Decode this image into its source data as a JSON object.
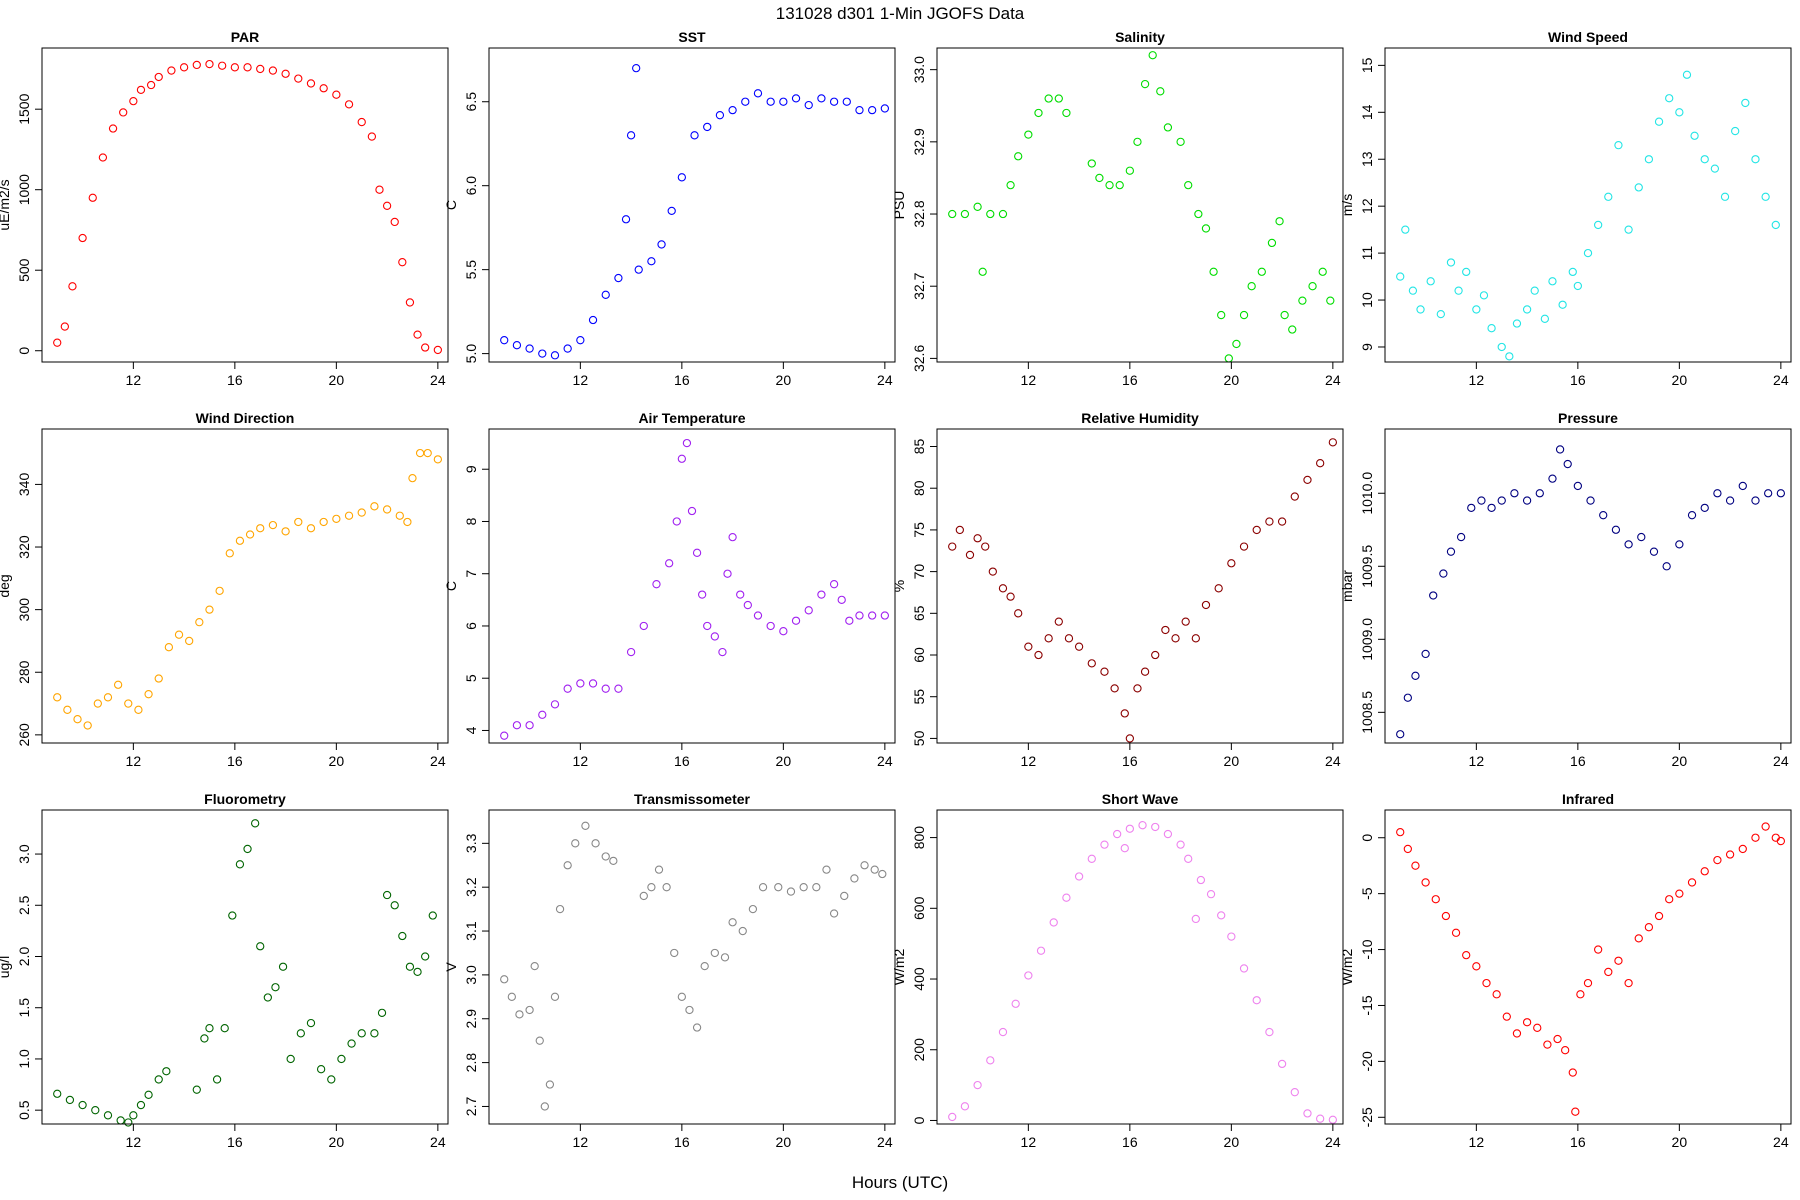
{
  "title": "131028   d301   1-Min  JGOFS Data",
  "xlabel": "Hours (UTC)",
  "chart_data": [
    {
      "type": "scatter",
      "title": "PAR",
      "ylabel": "uE/m2/s",
      "color": "#ff0000",
      "x": [
        9.0,
        9.3,
        9.6,
        10.0,
        10.4,
        10.8,
        11.2,
        11.6,
        12.0,
        12.3,
        12.7,
        13.0,
        13.5,
        14.0,
        14.5,
        15.0,
        15.5,
        16.0,
        16.5,
        17.0,
        17.5,
        18.0,
        18.5,
        19.0,
        19.5,
        20.0,
        20.5,
        21.0,
        21.4,
        21.7,
        22.0,
        22.3,
        22.6,
        22.9,
        23.2,
        23.5,
        24.0
      ],
      "values": [
        50,
        150,
        400,
        700,
        950,
        1200,
        1380,
        1480,
        1550,
        1620,
        1650,
        1700,
        1740,
        1760,
        1775,
        1780,
        1770,
        1760,
        1760,
        1750,
        1740,
        1720,
        1690,
        1660,
        1630,
        1590,
        1530,
        1420,
        1330,
        1000,
        900,
        800,
        550,
        300,
        100,
        20,
        5
      ],
      "xlim": [
        8.4,
        24.4
      ],
      "xticks": [
        12,
        16,
        20,
        24
      ],
      "ylim": [
        -70,
        1880
      ],
      "yticks": [
        0,
        500,
        1000,
        1500
      ]
    },
    {
      "type": "scatter",
      "title": "SST",
      "ylabel": "C",
      "color": "#0000ff",
      "x": [
        9.0,
        9.5,
        10.0,
        10.5,
        11.0,
        11.5,
        12.0,
        12.5,
        13.0,
        13.5,
        13.8,
        14.0,
        14.2,
        14.3,
        14.8,
        15.2,
        15.6,
        16.0,
        16.5,
        17.0,
        17.5,
        18.0,
        18.5,
        19.0,
        19.5,
        20.0,
        20.5,
        21.0,
        21.5,
        22.0,
        22.5,
        23.0,
        23.5,
        24.0
      ],
      "values": [
        5.08,
        5.05,
        5.03,
        5.0,
        4.99,
        5.03,
        5.08,
        5.2,
        5.35,
        5.45,
        5.8,
        6.3,
        6.7,
        5.5,
        5.55,
        5.65,
        5.85,
        6.05,
        6.3,
        6.35,
        6.42,
        6.45,
        6.5,
        6.55,
        6.5,
        6.5,
        6.52,
        6.48,
        6.52,
        6.5,
        6.5,
        6.45,
        6.45,
        6.46
      ],
      "xlim": [
        8.4,
        24.4
      ],
      "xticks": [
        12,
        16,
        20,
        24
      ],
      "ylim": [
        4.95,
        6.82
      ],
      "yticks": [
        {
          "value": 5,
          "label": "5.0"
        },
        5.5,
        {
          "value": 6,
          "label": "6.0"
        },
        6.5
      ]
    },
    {
      "type": "scatter",
      "title": "Salinity",
      "ylabel": "PSU",
      "color": "#00dd00",
      "x": [
        9.0,
        9.5,
        10.0,
        10.2,
        10.5,
        11.0,
        11.3,
        11.6,
        12.0,
        12.4,
        12.8,
        13.2,
        13.5,
        14.5,
        14.8,
        15.2,
        15.6,
        16.0,
        16.3,
        16.6,
        16.9,
        17.2,
        17.5,
        18.0,
        18.3,
        18.7,
        19.0,
        19.3,
        19.6,
        19.9,
        20.2,
        20.5,
        20.8,
        21.2,
        21.6,
        21.9,
        22.1,
        22.4,
        22.8,
        23.2,
        23.6,
        23.9
      ],
      "values": [
        32.8,
        32.8,
        32.81,
        32.72,
        32.8,
        32.8,
        32.84,
        32.88,
        32.91,
        32.94,
        32.96,
        32.96,
        32.94,
        32.87,
        32.85,
        32.84,
        32.84,
        32.86,
        32.9,
        32.98,
        33.02,
        32.97,
        32.92,
        32.9,
        32.84,
        32.8,
        32.78,
        32.72,
        32.66,
        32.6,
        32.62,
        32.66,
        32.7,
        32.72,
        32.76,
        32.79,
        32.66,
        32.64,
        32.68,
        32.7,
        32.72,
        32.68
      ],
      "xlim": [
        8.4,
        24.4
      ],
      "xticks": [
        12,
        16,
        20,
        24
      ],
      "ylim": [
        32.595,
        33.03
      ],
      "yticks": [
        32.6,
        32.7,
        32.8,
        32.9,
        {
          "value": 33,
          "label": "33.0"
        }
      ]
    },
    {
      "type": "scatter",
      "title": "Wind Speed",
      "ylabel": "m/s",
      "color": "#22e5e5",
      "x": [
        9.0,
        9.2,
        9.5,
        9.8,
        10.2,
        10.6,
        11.0,
        11.3,
        11.6,
        12.0,
        12.3,
        12.6,
        13.0,
        13.3,
        13.6,
        14.0,
        14.3,
        14.7,
        15.0,
        15.4,
        15.8,
        16.0,
        16.4,
        16.8,
        17.2,
        17.6,
        18.0,
        18.4,
        18.8,
        19.2,
        19.6,
        20.0,
        20.3,
        20.6,
        21.0,
        21.4,
        21.8,
        22.2,
        22.6,
        23.0,
        23.4,
        23.8
      ],
      "values": [
        10.5,
        11.5,
        10.2,
        9.8,
        10.4,
        9.7,
        10.8,
        10.2,
        10.6,
        9.8,
        10.1,
        9.4,
        9.0,
        8.8,
        9.5,
        9.8,
        10.2,
        9.6,
        10.4,
        9.9,
        10.6,
        10.3,
        11.0,
        11.6,
        12.2,
        13.3,
        11.5,
        12.4,
        13.0,
        13.8,
        14.3,
        14.0,
        14.8,
        13.5,
        13.0,
        12.8,
        12.2,
        13.6,
        14.2,
        13.0,
        12.2,
        11.6
      ],
      "xlim": [
        8.4,
        24.4
      ],
      "xticks": [
        12,
        16,
        20,
        24
      ],
      "ylim": [
        8.68,
        15.37
      ],
      "yticks": [
        9,
        10,
        11,
        12,
        13,
        14,
        15
      ]
    },
    {
      "type": "scatter",
      "title": "Wind Direction",
      "ylabel": "deg",
      "color": "#ffa500",
      "x": [
        9.0,
        9.4,
        9.8,
        10.2,
        10.6,
        11.0,
        11.4,
        11.8,
        12.2,
        12.6,
        13.0,
        13.4,
        13.8,
        14.2,
        14.6,
        15.0,
        15.4,
        15.8,
        16.2,
        16.6,
        17.0,
        17.5,
        18.0,
        18.5,
        19.0,
        19.5,
        20.0,
        20.5,
        21.0,
        21.5,
        22.0,
        22.5,
        22.8,
        23.0,
        23.3,
        23.6,
        24.0
      ],
      "values": [
        272,
        268,
        265,
        263,
        270,
        272,
        276,
        270,
        268,
        273,
        278,
        288,
        292,
        290,
        296,
        300,
        306,
        318,
        322,
        324,
        326,
        327,
        325,
        328,
        326,
        328,
        329,
        330,
        331,
        333,
        332,
        330,
        328,
        342,
        350,
        350,
        348
      ],
      "xlim": [
        8.4,
        24.4
      ],
      "xticks": [
        12,
        16,
        20,
        24
      ],
      "ylim": [
        257.4,
        357.7
      ],
      "yticks": [
        260,
        280,
        300,
        320,
        340
      ]
    },
    {
      "type": "scatter",
      "title": "Air Temperature",
      "ylabel": "C",
      "color": "#a020f0",
      "x": [
        9.0,
        9.5,
        10.0,
        10.5,
        11.0,
        11.5,
        12.0,
        12.5,
        13.0,
        13.5,
        14.0,
        14.5,
        15.0,
        15.5,
        15.8,
        16.0,
        16.2,
        16.4,
        16.6,
        16.8,
        17.0,
        17.3,
        17.6,
        17.8,
        18.0,
        18.3,
        18.6,
        19.0,
        19.5,
        20.0,
        20.5,
        21.0,
        21.5,
        22.0,
        22.3,
        22.6,
        23.0,
        23.5,
        24.0
      ],
      "values": [
        3.9,
        4.1,
        4.1,
        4.3,
        4.5,
        4.8,
        4.9,
        4.9,
        4.8,
        4.8,
        5.5,
        6.0,
        6.8,
        7.2,
        8.0,
        9.2,
        9.5,
        8.2,
        7.4,
        6.6,
        6.0,
        5.8,
        5.5,
        7.0,
        7.7,
        6.6,
        6.4,
        6.2,
        6.0,
        5.9,
        6.1,
        6.3,
        6.6,
        6.8,
        6.5,
        6.1,
        6.2,
        6.2,
        6.2
      ],
      "xlim": [
        8.4,
        24.4
      ],
      "xticks": [
        12,
        16,
        20,
        24
      ],
      "ylim": [
        3.76,
        9.77
      ],
      "yticks": [
        4,
        5,
        6,
        7,
        8,
        9
      ]
    },
    {
      "type": "scatter",
      "title": "Relative Humidity",
      "ylabel": "%",
      "color": "#8b0000",
      "x": [
        9.0,
        9.3,
        9.7,
        10.0,
        10.3,
        10.6,
        11.0,
        11.3,
        11.6,
        12.0,
        12.4,
        12.8,
        13.2,
        13.6,
        14.0,
        14.5,
        15.0,
        15.4,
        15.8,
        16.0,
        16.3,
        16.6,
        17.0,
        17.4,
        17.8,
        18.2,
        18.6,
        19.0,
        19.5,
        20.0,
        20.5,
        21.0,
        21.5,
        22.0,
        22.5,
        23.0,
        23.5,
        24.0
      ],
      "values": [
        73,
        75,
        72,
        74,
        73,
        70,
        68,
        67,
        65,
        61,
        60,
        62,
        64,
        62,
        61,
        59,
        58,
        56,
        53,
        50,
        56,
        58,
        60,
        63,
        62,
        64,
        62,
        66,
        68,
        71,
        73,
        75,
        76,
        76,
        79,
        81,
        83,
        85.5
      ],
      "xlim": [
        8.4,
        24.4
      ],
      "xticks": [
        12,
        16,
        20,
        24
      ],
      "ylim": [
        49.45,
        87.1
      ],
      "yticks": [
        50,
        55,
        60,
        65,
        70,
        75,
        80,
        85
      ]
    },
    {
      "type": "scatter",
      "title": "Pressure",
      "ylabel": "mbar",
      "color": "#000080",
      "x": [
        9.0,
        9.3,
        9.6,
        10.0,
        10.3,
        10.7,
        11.0,
        11.4,
        11.8,
        12.2,
        12.6,
        13.0,
        13.5,
        14.0,
        14.5,
        15.0,
        15.3,
        15.6,
        16.0,
        16.5,
        17.0,
        17.5,
        18.0,
        18.5,
        19.0,
        19.5,
        20.0,
        20.5,
        21.0,
        21.5,
        22.0,
        22.5,
        23.0,
        23.5,
        24.0
      ],
      "values": [
        1008.35,
        1008.6,
        1008.75,
        1008.9,
        1009.3,
        1009.45,
        1009.6,
        1009.7,
        1009.9,
        1009.95,
        1009.9,
        1009.95,
        1010.0,
        1009.95,
        1010.0,
        1010.1,
        1010.3,
        1010.2,
        1010.05,
        1009.95,
        1009.85,
        1009.75,
        1009.65,
        1009.7,
        1009.6,
        1009.5,
        1009.65,
        1009.85,
        1009.9,
        1010.0,
        1009.95,
        1010.05,
        1009.95,
        1010.0,
        1010.0
      ],
      "xlim": [
        8.4,
        24.4
      ],
      "xticks": [
        12,
        16,
        20,
        24
      ],
      "ylim": [
        1008.29,
        1010.44
      ],
      "yticks": [
        1008.5,
        {
          "value": 1009,
          "label": "1009.0"
        },
        1009.5,
        {
          "value": 1010,
          "label": "1010.0"
        }
      ]
    },
    {
      "type": "scatter",
      "title": "Fluorometry",
      "ylabel": "ug/l",
      "color": "#006400",
      "x": [
        9.0,
        9.5,
        10.0,
        10.5,
        11.0,
        11.5,
        11.8,
        12.0,
        12.3,
        12.6,
        13.0,
        13.3,
        14.5,
        14.8,
        15.0,
        15.3,
        15.6,
        15.9,
        16.2,
        16.5,
        16.8,
        17.0,
        17.3,
        17.6,
        17.9,
        18.2,
        18.6,
        19.0,
        19.4,
        19.8,
        20.2,
        20.6,
        21.0,
        21.5,
        21.8,
        22.0,
        22.3,
        22.6,
        22.9,
        23.2,
        23.5,
        23.8
      ],
      "values": [
        0.66,
        0.6,
        0.55,
        0.5,
        0.45,
        0.4,
        0.38,
        0.45,
        0.55,
        0.65,
        0.8,
        0.88,
        0.7,
        1.2,
        1.3,
        0.8,
        1.3,
        2.4,
        2.9,
        3.05,
        3.3,
        2.1,
        1.6,
        1.7,
        1.9,
        1.0,
        1.25,
        1.35,
        0.9,
        0.8,
        1.0,
        1.15,
        1.25,
        1.25,
        1.45,
        2.6,
        2.5,
        2.2,
        1.9,
        1.85,
        2.0,
        2.4
      ],
      "xlim": [
        8.4,
        24.4
      ],
      "xticks": [
        12,
        16,
        20,
        24
      ],
      "ylim": [
        0.365,
        3.43
      ],
      "yticks": [
        0.5,
        {
          "value": 1,
          "label": "1.0"
        },
        1.5,
        {
          "value": 2,
          "label": "2.0"
        },
        2.5,
        {
          "value": 3,
          "label": "3.0"
        }
      ]
    },
    {
      "type": "scatter",
      "title": "Transmissometer",
      "ylabel": "V",
      "color": "#888888",
      "x": [
        9.0,
        9.3,
        9.6,
        10.0,
        10.2,
        10.4,
        10.6,
        10.8,
        11.0,
        11.2,
        11.5,
        11.8,
        12.2,
        12.6,
        13.0,
        13.3,
        14.5,
        14.8,
        15.1,
        15.4,
        15.7,
        16.0,
        16.3,
        16.6,
        16.9,
        17.3,
        17.7,
        18.0,
        18.4,
        18.8,
        19.2,
        19.8,
        20.3,
        20.8,
        21.3,
        21.7,
        22.0,
        22.4,
        22.8,
        23.2,
        23.6,
        23.9
      ],
      "values": [
        2.99,
        2.95,
        2.91,
        2.92,
        3.02,
        2.85,
        2.7,
        2.75,
        2.95,
        3.15,
        3.25,
        3.3,
        3.34,
        3.3,
        3.27,
        3.26,
        3.18,
        3.2,
        3.24,
        3.2,
        3.05,
        2.95,
        2.92,
        2.88,
        3.02,
        3.05,
        3.04,
        3.12,
        3.1,
        3.15,
        3.2,
        3.2,
        3.19,
        3.2,
        3.2,
        3.24,
        3.14,
        3.18,
        3.22,
        3.25,
        3.24,
        3.23
      ],
      "xlim": [
        8.4,
        24.4
      ],
      "xticks": [
        12,
        16,
        20,
        24
      ],
      "ylim": [
        2.66,
        3.376
      ],
      "yticks": [
        2.7,
        2.8,
        2.9,
        {
          "value": 3,
          "label": "3.0"
        },
        3.1,
        3.2,
        3.3
      ]
    },
    {
      "type": "scatter",
      "title": "Short Wave",
      "ylabel": "W/m2",
      "color": "#ee82ee",
      "x": [
        9.0,
        9.5,
        10.0,
        10.5,
        11.0,
        11.5,
        12.0,
        12.5,
        13.0,
        13.5,
        14.0,
        14.5,
        15.0,
        15.5,
        15.8,
        16.0,
        16.5,
        17.0,
        17.5,
        18.0,
        18.3,
        18.6,
        18.8,
        19.2,
        19.6,
        20.0,
        20.5,
        21.0,
        21.5,
        22.0,
        22.5,
        23.0,
        23.5,
        24.0
      ],
      "values": [
        10,
        40,
        100,
        170,
        250,
        330,
        410,
        480,
        560,
        630,
        690,
        740,
        780,
        810,
        770,
        825,
        835,
        830,
        810,
        780,
        740,
        570,
        680,
        640,
        580,
        520,
        430,
        340,
        250,
        160,
        80,
        20,
        5,
        2
      ],
      "xlim": [
        8.4,
        24.4
      ],
      "xticks": [
        12,
        16,
        20,
        24
      ],
      "ylim": [
        -10,
        878
      ],
      "yticks": [
        0,
        200,
        400,
        600,
        800
      ]
    },
    {
      "type": "scatter",
      "title": "Infrared",
      "ylabel": "W/m2",
      "color": "#ff0000",
      "x": [
        9.0,
        9.3,
        9.6,
        10.0,
        10.4,
        10.8,
        11.2,
        11.6,
        12.0,
        12.4,
        12.8,
        13.2,
        13.6,
        14.0,
        14.4,
        14.8,
        15.2,
        15.5,
        15.8,
        15.9,
        16.1,
        16.4,
        16.8,
        17.2,
        17.6,
        18.0,
        18.4,
        18.8,
        19.2,
        19.6,
        20.0,
        20.5,
        21.0,
        21.5,
        22.0,
        22.5,
        23.0,
        23.4,
        23.8,
        24.0
      ],
      "values": [
        0.5,
        -1,
        -2.5,
        -4,
        -5.5,
        -7,
        -8.5,
        -10.5,
        -11.5,
        -13,
        -14,
        -16,
        -17.5,
        -16.5,
        -17,
        -18.5,
        -18,
        -19,
        -21,
        -24.5,
        -14,
        -13,
        -10,
        -12,
        -11,
        -13,
        -9,
        -8,
        -7,
        -5.5,
        -5,
        -4,
        -3,
        -2,
        -1.5,
        -1,
        0,
        1,
        0,
        -0.3
      ],
      "xlim": [
        8.4,
        24.4
      ],
      "xticks": [
        12,
        16,
        20,
        24
      ],
      "ylim": [
        -25.6,
        2.48
      ],
      "yticks": [
        -25,
        -20,
        -15,
        -10,
        -5,
        0
      ]
    }
  ]
}
